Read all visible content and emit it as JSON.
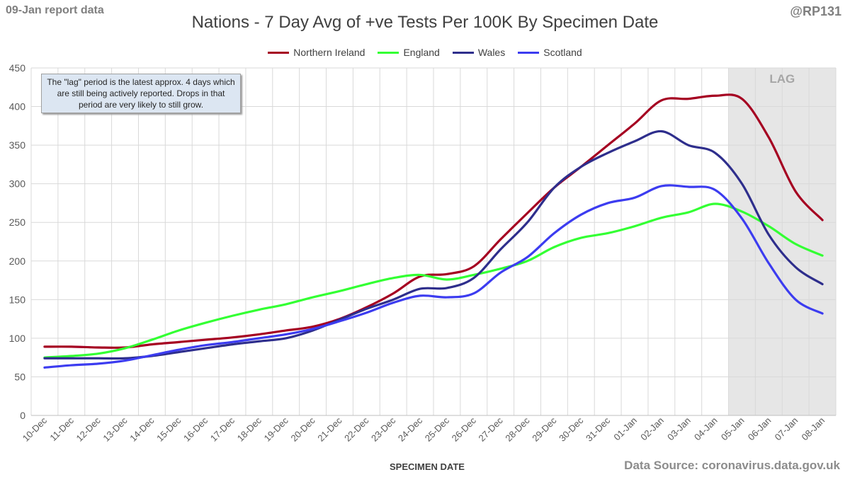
{
  "header": {
    "report_label": "09-Jan report data",
    "handle": "@RP131",
    "source": "Data Source: coronavirus.data.gov.uk"
  },
  "annotation": {
    "note": "The \"lag\" period is the latest approx. 4 days which are still being actively reported.  Drops in that period are very likely to still grow.",
    "lag_label": "LAG"
  },
  "colors": {
    "northern_ireland": "#a50021",
    "england": "#33ff33",
    "wales": "#2e2e8c",
    "scotland": "#3c3cf0",
    "lag_shade": "#e6e6e6",
    "grid": "#d9d9d9"
  },
  "chart_data": {
    "type": "line",
    "title": "Nations - 7 Day Avg of +ve Tests Per 100K By Specimen Date",
    "xlabel": "SPECIMEN DATE",
    "ylabel": "",
    "ylim": [
      0,
      450
    ],
    "yticks": [
      0,
      50,
      100,
      150,
      200,
      250,
      300,
      350,
      400,
      450
    ],
    "grid": true,
    "legend_position": "top-center",
    "lag_start_category": "05-Jan",
    "categories": [
      "10-Dec",
      "11-Dec",
      "12-Dec",
      "13-Dec",
      "14-Dec",
      "15-Dec",
      "16-Dec",
      "17-Dec",
      "18-Dec",
      "19-Dec",
      "20-Dec",
      "21-Dec",
      "22-Dec",
      "23-Dec",
      "24-Dec",
      "25-Dec",
      "26-Dec",
      "27-Dec",
      "28-Dec",
      "29-Dec",
      "30-Dec",
      "31-Dec",
      "01-Jan",
      "02-Jan",
      "03-Jan",
      "04-Jan",
      "05-Jan",
      "06-Jan",
      "07-Jan",
      "08-Jan"
    ],
    "series": [
      {
        "name": "Northern Ireland",
        "color_key": "northern_ireland",
        "values": [
          89,
          89,
          88,
          88,
          92,
          95,
          98,
          101,
          105,
          110,
          115,
          125,
          140,
          158,
          180,
          183,
          193,
          228,
          262,
          295,
          322,
          350,
          378,
          408,
          410,
          414,
          410,
          360,
          290,
          253
        ]
      },
      {
        "name": "England",
        "color_key": "england",
        "values": [
          75,
          77,
          80,
          87,
          98,
          110,
          120,
          129,
          137,
          144,
          153,
          161,
          170,
          178,
          182,
          176,
          182,
          190,
          200,
          218,
          230,
          236,
          245,
          256,
          263,
          274,
          264,
          245,
          222,
          207
        ]
      },
      {
        "name": "Wales",
        "color_key": "wales",
        "values": [
          74,
          74,
          74,
          74,
          77,
          82,
          87,
          92,
          96,
          100,
          110,
          124,
          138,
          150,
          164,
          165,
          178,
          215,
          250,
          295,
          322,
          340,
          355,
          368,
          350,
          340,
          300,
          234,
          192,
          170
        ]
      },
      {
        "name": "Scotland",
        "color_key": "scotland",
        "values": [
          62,
          65,
          67,
          71,
          78,
          85,
          91,
          95,
          100,
          105,
          112,
          122,
          133,
          146,
          155,
          153,
          158,
          185,
          205,
          236,
          260,
          275,
          282,
          297,
          296,
          292,
          255,
          197,
          150,
          132
        ]
      }
    ]
  }
}
